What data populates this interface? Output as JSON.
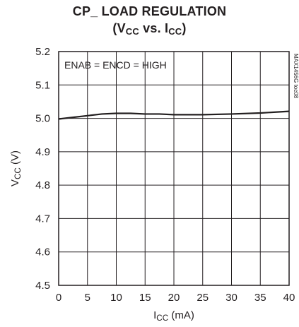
{
  "chart_data": {
    "type": "line",
    "title": "CP_ LOAD REGULATION",
    "subtitle_parts": [
      {
        "text": "(V",
        "sub": false
      },
      {
        "text": "CC",
        "sub": true
      },
      {
        "text": " vs. I",
        "sub": false
      },
      {
        "text": "CC",
        "sub": true
      },
      {
        "text": ")",
        "sub": false
      }
    ],
    "xlabel_parts": [
      {
        "text": "I",
        "sub": false
      },
      {
        "text": "CC",
        "sub": true
      },
      {
        "text": " (mA)",
        "sub": false
      }
    ],
    "ylabel_parts": [
      {
        "text": "V",
        "sub": false
      },
      {
        "text": "CC",
        "sub": true
      },
      {
        "text": " (V)",
        "sub": false
      }
    ],
    "xlim": [
      0,
      40
    ],
    "ylim": [
      4.5,
      5.2
    ],
    "xticks": [
      0,
      5,
      10,
      15,
      20,
      25,
      30,
      35,
      40
    ],
    "yticks": [
      4.5,
      4.6,
      4.7,
      4.8,
      4.9,
      5.0,
      5.1,
      5.2
    ],
    "ytick_labels": [
      "4.5",
      "4.6",
      "4.7",
      "4.8",
      "4.9",
      "5.0",
      "5.1",
      "5.2"
    ],
    "grid": true,
    "annotation": "ENAB = ENCD = HIGH",
    "watermark": "MAX1456G toc08",
    "series": [
      {
        "color": "#231f20",
        "x": [
          0,
          2.5,
          5,
          7.5,
          10,
          12.5,
          15,
          17.5,
          20,
          25,
          30,
          35,
          40
        ],
        "y": [
          4.998,
          5.003,
          5.008,
          5.013,
          5.015,
          5.015,
          5.013,
          5.013,
          5.011,
          5.011,
          5.013,
          5.016,
          5.021
        ]
      }
    ]
  }
}
